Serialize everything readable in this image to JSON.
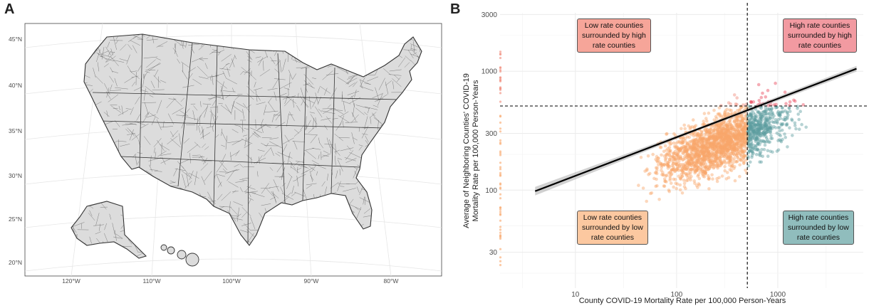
{
  "panels": {
    "a_letter": "A",
    "b_letter": "B"
  },
  "map": {
    "lat_ticks": [
      "45°N",
      "40°N",
      "35°N",
      "30°N",
      "25°N",
      "20°N"
    ],
    "lon_ticks": [
      "120°W",
      "110°W",
      "100°W",
      "90°W",
      "80°W"
    ],
    "fill_color": "#dcdcdc",
    "edge_color": "#333333"
  },
  "chart_data": {
    "type": "scatter",
    "xlabel": "County COVID-19 Mortality Rate per 100,000 Person-Years",
    "ylabel_line1": "Average of Neighboring Counties' COVID-19",
    "ylabel_line2": "Mortality Rate per 100,000 Person-Years",
    "x_scale": "log",
    "y_scale": "log",
    "xlim": [
      1.8,
      7000
    ],
    "ylim": [
      15,
      3100
    ],
    "x_ticks": [
      10,
      100,
      1000
    ],
    "x_tick_labels": [
      "10",
      "100",
      "1000"
    ],
    "y_ticks": [
      30,
      100,
      300,
      1000,
      3000
    ],
    "y_tick_labels": [
      "30",
      "100",
      "300",
      "1000",
      "3000"
    ],
    "vline_x": 500,
    "hline_y": 510,
    "regression_line": {
      "x": [
        4,
        6000
      ],
      "y": [
        98,
        1050
      ]
    },
    "quadrants": [
      {
        "name": "High-High",
        "line1": "High rate counties",
        "line2": "surrounded by high",
        "line3": "rate counties",
        "color": "#e8475a",
        "label_bg": "#f29aa1"
      },
      {
        "name": "Low-High",
        "line1": "Low rate counties",
        "line2": "surrounded by high",
        "line3": "rate counties",
        "color": "#f08a7a",
        "label_bg": "#f6a599"
      },
      {
        "name": "Low-Low",
        "line1": "Low rate counties",
        "line2": "surrounded by low",
        "line3": "rate counties",
        "color": "#f9a66b",
        "label_bg": "#fcc8a0"
      },
      {
        "name": "High-Low",
        "line1": "High rate counties",
        "line2": "surrounded by low",
        "line3": "rate counties",
        "color": "#5e9ea0",
        "label_bg": "#90bdbd"
      }
    ],
    "grid": true,
    "legend": "none"
  }
}
